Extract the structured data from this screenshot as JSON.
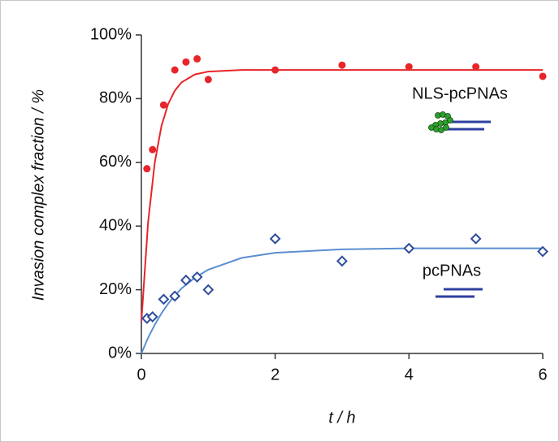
{
  "chart_data": {
    "type": "scatter",
    "x_label": "t / h",
    "y_label": "Invasion complex fraction / %",
    "xlim": [
      0,
      6
    ],
    "xticks": [
      0,
      2,
      4,
      6
    ],
    "ylim": [
      0,
      100
    ],
    "yticks": [
      {
        "value": 0,
        "label": "0%"
      },
      {
        "value": 20,
        "label": "20%"
      },
      {
        "value": 40,
        "label": "40%"
      },
      {
        "value": 60,
        "label": "60%"
      },
      {
        "value": 80,
        "label": "80%"
      },
      {
        "value": 100,
        "label": "100%"
      }
    ],
    "series": [
      {
        "name": "NLS-pcPNAs",
        "color": "#e8252a",
        "marker": "circle",
        "x": [
          0.083,
          0.167,
          0.333,
          0.5,
          0.667,
          0.833,
          1,
          2,
          3,
          4,
          5,
          6
        ],
        "values": [
          58,
          64,
          78,
          89,
          91.5,
          92.5,
          86,
          89,
          90.5,
          90,
          90,
          87
        ]
      },
      {
        "name": "pcPNAs",
        "color": "#2e4d9a",
        "marker": "diamond",
        "x": [
          0.083,
          0.167,
          0.333,
          0.5,
          0.667,
          0.833,
          1,
          2,
          3,
          4,
          5,
          6
        ],
        "values": [
          11,
          11.5,
          17,
          18,
          23,
          24,
          20,
          36,
          29,
          33,
          36,
          32
        ]
      }
    ],
    "fits": [
      {
        "color": "#e8252a",
        "x": [
          0,
          0.1,
          0.2,
          0.3,
          0.4,
          0.5,
          0.6,
          0.8,
          1,
          1.5,
          2,
          3,
          4,
          5,
          6
        ],
        "values": [
          10,
          41.1,
          59.9,
          71.4,
          78.3,
          82.5,
          85.1,
          87.6,
          88.5,
          89,
          89,
          89,
          89,
          89,
          89
        ]
      },
      {
        "color": "#5b8fd0",
        "x": [
          0,
          0.1,
          0.2,
          0.3,
          0.4,
          0.5,
          0.6,
          0.8,
          1,
          1.5,
          2,
          3,
          4,
          5,
          6
        ],
        "values": [
          0,
          4.9,
          9.0,
          12.6,
          15.6,
          18.2,
          20.4,
          23.8,
          26.3,
          30.0,
          31.6,
          32.7,
          33,
          33,
          33
        ]
      }
    ]
  }
}
